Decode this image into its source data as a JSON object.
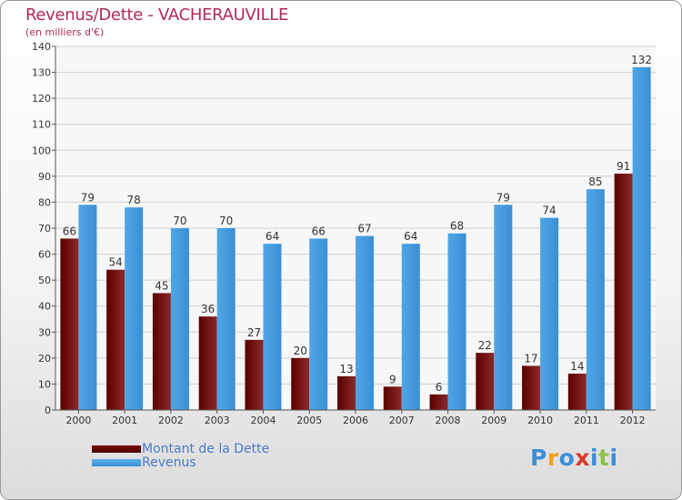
{
  "header": {
    "title": "Revenus/Dette - VACHERAUVILLE",
    "subtitle": "(en milliers d'€)"
  },
  "legend": {
    "items": [
      {
        "label": "Montant de la Dette",
        "color": "#6b0a0a"
      },
      {
        "label": "Revenus",
        "color": "#4a9fe0"
      }
    ]
  },
  "logo": {
    "text": "Proxiti",
    "letters": [
      "P",
      "r",
      "o",
      "x",
      "i",
      "t",
      "i"
    ],
    "colors": [
      "#3a8fd8",
      "#f0a020",
      "#3a8fd8",
      "#d83a2a",
      "#3a8fd8",
      "#8bc34a",
      "#3a8fd8"
    ]
  },
  "chart_data": {
    "type": "bar",
    "title": "Revenus/Dette - VACHERAUVILLE",
    "ylabel": "(en milliers d'€)",
    "xlabel": "",
    "categories": [
      "2000",
      "2001",
      "2002",
      "2003",
      "2004",
      "2005",
      "2006",
      "2007",
      "2008",
      "2009",
      "2010",
      "2011",
      "2012"
    ],
    "series": [
      {
        "name": "Montant de la Dette",
        "color": "#7a1a1a",
        "values": [
          66,
          54,
          45,
          36,
          27,
          20,
          13,
          9,
          6,
          22,
          17,
          14,
          91
        ]
      },
      {
        "name": "Revenus",
        "color": "#4a9fe0",
        "values": [
          79,
          78,
          70,
          70,
          64,
          66,
          67,
          64,
          68,
          79,
          74,
          85,
          132
        ]
      }
    ],
    "ylim": [
      0,
      140
    ],
    "yticks": [
      0,
      10,
      20,
      30,
      40,
      50,
      60,
      70,
      80,
      90,
      100,
      110,
      120,
      130,
      140
    ],
    "grid": true,
    "legend_position": "bottom-left"
  }
}
